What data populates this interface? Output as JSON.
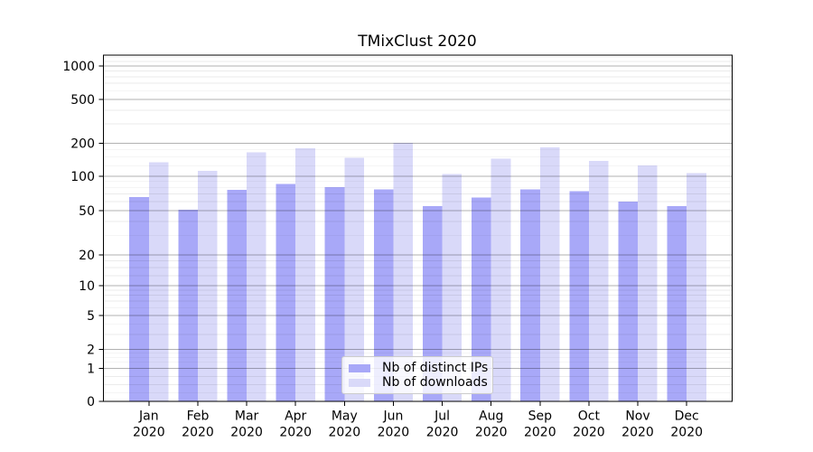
{
  "chart_data": {
    "type": "bar",
    "title": "TMixClust 2020",
    "categories": [
      "Jan",
      "Feb",
      "Mar",
      "Apr",
      "May",
      "Jun",
      "Jul",
      "Aug",
      "Sep",
      "Oct",
      "Nov",
      "Dec"
    ],
    "year_label": "2020",
    "series": [
      {
        "name": "Nb of distinct IPs",
        "color": "#a8a8f8",
        "values": [
          66,
          51,
          76,
          86,
          80,
          77,
          55,
          65,
          77,
          74,
          60,
          55
        ]
      },
      {
        "name": "Nb of downloads",
        "color": "#d9d9f9",
        "values": [
          134,
          112,
          166,
          180,
          148,
          203,
          105,
          145,
          185,
          139,
          126,
          107
        ]
      }
    ],
    "y_axis": {
      "scale": "symlog",
      "ticks": [
        0,
        1,
        2,
        5,
        10,
        20,
        50,
        100,
        200,
        500,
        1000
      ],
      "minor_gridlines": [
        0.25,
        0.5,
        0.75,
        1.25,
        1.5,
        1.75,
        3,
        4,
        6,
        7,
        8,
        9,
        12.5,
        15,
        17.5,
        30,
        40,
        60,
        70,
        80,
        90,
        125,
        150,
        175,
        300,
        400,
        600,
        700,
        800,
        900,
        1100,
        1200
      ],
      "ylim_top_approx": 1250
    },
    "xlabel": "",
    "ylabel": "",
    "grid": true,
    "legend_position": "lower center, inside plot"
  }
}
